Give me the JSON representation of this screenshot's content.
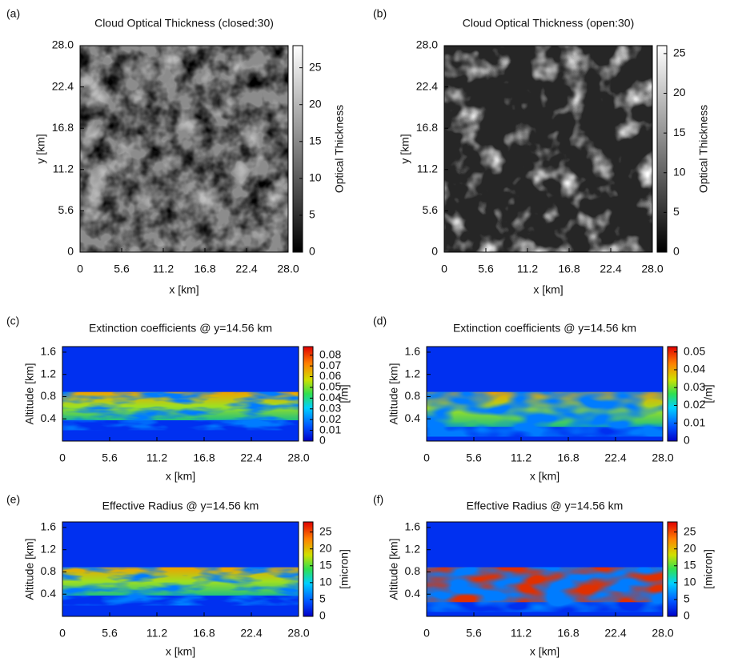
{
  "chart_data": [
    {
      "type": "heatmap",
      "panel": "(a)",
      "title": "Cloud Optical Thickness (closed:30)",
      "xlabel": "x [km]",
      "ylabel": "y [km]",
      "colorbar_label": "Optical Thickness",
      "colormap": "gray",
      "field": "closed",
      "xlim": [
        0,
        28
      ],
      "xticks": [
        0,
        5.6,
        11.2,
        16.8,
        22.4,
        {
          "value": 28,
          "label": "28.0"
        }
      ],
      "ylim": [
        0,
        28
      ],
      "yticks": [
        0,
        5.6,
        11.2,
        16.8,
        22.4,
        {
          "value": 28,
          "label": "28.0"
        }
      ],
      "clim": [
        0,
        28
      ],
      "cticks": [
        0,
        5,
        10,
        15,
        20,
        25
      ]
    },
    {
      "type": "heatmap",
      "panel": "(b)",
      "title": "Cloud Optical Thickness (open:30)",
      "xlabel": "x [km]",
      "ylabel": "y [km]",
      "colorbar_label": "Optical Thickness",
      "colormap": "gray",
      "field": "open",
      "xlim": [
        0,
        28
      ],
      "xticks": [
        0,
        5.6,
        11.2,
        16.8,
        22.4,
        {
          "value": 28,
          "label": "28.0"
        }
      ],
      "ylim": [
        0,
        28
      ],
      "yticks": [
        0,
        5.6,
        11.2,
        16.8,
        22.4,
        {
          "value": 28,
          "label": "28.0"
        }
      ],
      "clim": [
        0,
        26
      ],
      "cticks": [
        0,
        5,
        10,
        15,
        20,
        25
      ]
    },
    {
      "type": "heatmap",
      "panel": "(c)",
      "title": "Extinction coefficients @ y=14.56 km",
      "xlabel": "x [km]",
      "ylabel": "Altitude [km]",
      "colorbar_label": "[/m]",
      "colormap": "jet",
      "field": "closed",
      "xlim": [
        0,
        28
      ],
      "xticks": [
        0,
        5.6,
        11.2,
        16.8,
        22.4,
        {
          "value": 28,
          "label": "28.0"
        }
      ],
      "ylim": [
        0,
        1.7
      ],
      "yticks": [
        0.4,
        0.8,
        1.2,
        1.6
      ],
      "clim": [
        0,
        0.088
      ],
      "cticks": [
        0,
        0.01,
        0.02,
        0.03,
        0.04,
        0.05,
        0.06,
        0.07,
        0.08
      ]
    },
    {
      "type": "heatmap",
      "panel": "(d)",
      "title": "Extinction coefficients @ y=14.56 km",
      "xlabel": "x [km]",
      "ylabel": "Altitude [km]",
      "colorbar_label": "[/m]",
      "colormap": "jet",
      "field": "open",
      "xlim": [
        0,
        28
      ],
      "xticks": [
        0,
        5.6,
        11.2,
        16.8,
        22.4,
        {
          "value": 28,
          "label": "28.0"
        }
      ],
      "ylim": [
        0,
        1.7
      ],
      "yticks": [
        0.4,
        0.8,
        1.2,
        1.6
      ],
      "clim": [
        0,
        0.053
      ],
      "cticks": [
        0,
        0.01,
        0.02,
        0.03,
        0.04,
        0.05
      ]
    },
    {
      "type": "heatmap",
      "panel": "(e)",
      "title": "Effective Radius @ y=14.56 km",
      "xlabel": "x [km]",
      "ylabel": "Altitude [km]",
      "colorbar_label": "[micron]",
      "colormap": "jet",
      "field": "closed",
      "xlim": [
        0,
        28
      ],
      "xticks": [
        0,
        5.6,
        11.2,
        16.8,
        22.4,
        {
          "value": 28,
          "label": "28.0"
        }
      ],
      "ylim": [
        0,
        1.7
      ],
      "yticks": [
        0.4,
        0.8,
        1.2,
        1.6
      ],
      "clim": [
        0,
        28
      ],
      "cticks": [
        0,
        5,
        10,
        15,
        20,
        25
      ]
    },
    {
      "type": "heatmap",
      "panel": "(f)",
      "title": "Effective Radius @ y=14.56 km",
      "xlabel": "x [km]",
      "ylabel": "Altitude [km]",
      "colorbar_label": "[micron]",
      "colormap": "jet",
      "field": "open",
      "xlim": [
        0,
        28
      ],
      "xticks": [
        0,
        5.6,
        11.2,
        16.8,
        22.4,
        {
          "value": 28,
          "label": "28.0"
        }
      ],
      "ylim": [
        0,
        1.7
      ],
      "yticks": [
        0.4,
        0.8,
        1.2,
        1.6
      ],
      "clim": [
        0,
        28
      ],
      "cticks": [
        0,
        5,
        10,
        15,
        20,
        25
      ]
    }
  ]
}
